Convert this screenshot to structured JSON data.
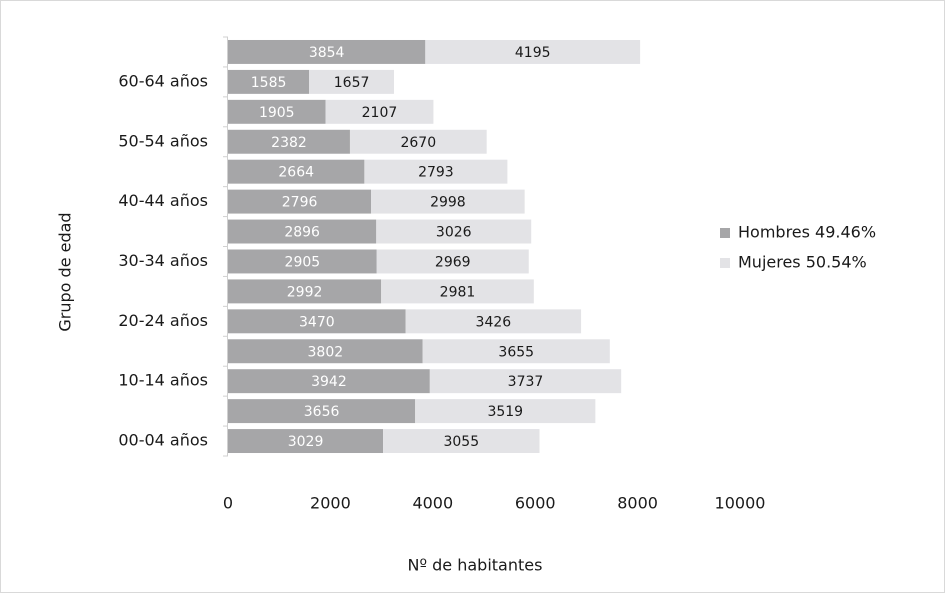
{
  "chart_data": {
    "type": "stacked-barh",
    "xlabel": "Nº de habitantes",
    "ylabel": "Grupo de edad",
    "categories": [
      "00-04 años",
      null,
      "10-14 años",
      null,
      "20-24 años",
      null,
      "30-34 años",
      null,
      "40-44 años",
      null,
      "50-54 años",
      null,
      "60-64 años",
      null
    ],
    "series": [
      {
        "name": "Hombres 49.46%",
        "color": "#a6a6a8",
        "label_color": "#ffffff",
        "values": [
          3029,
          3656,
          3942,
          3802,
          3470,
          2992,
          2905,
          2896,
          2796,
          2664,
          2382,
          1905,
          1585,
          3854
        ]
      },
      {
        "name": "Mujeres 50.54%",
        "color": "#e3e3e6",
        "label_color": "#1a1a1a",
        "values": [
          3055,
          3519,
          3737,
          3655,
          3426,
          2981,
          2969,
          3026,
          2998,
          2793,
          2670,
          2107,
          1657,
          4195
        ]
      }
    ],
    "xlim": [
      0,
      10000
    ],
    "xticks": [
      0,
      2000,
      4000,
      6000,
      8000,
      10000
    ],
    "legend": "right"
  }
}
